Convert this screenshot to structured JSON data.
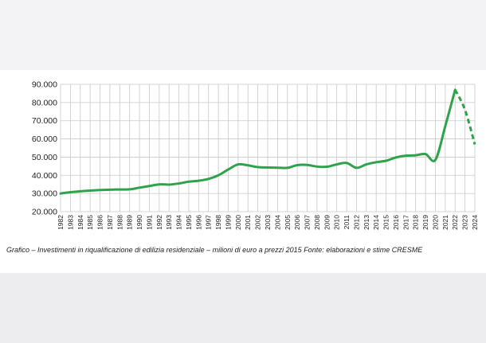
{
  "caption": "Grafico – Investimenti in riqualificazione di edilizia residenziale – milioni di euro a prezzi 2015 Fonte: elaborazioni e stime CRESME",
  "colors": {
    "line": "#2fa34b",
    "grid": "#c9c9c9",
    "background": "#ffffff"
  },
  "chart_data": {
    "type": "line",
    "title": "",
    "xlabel": "",
    "ylabel": "",
    "ylim": [
      20000,
      90000
    ],
    "yticks": [
      "20.000",
      "30.000",
      "40.000",
      "50.000",
      "60.000",
      "70.000",
      "80.000",
      "90.000"
    ],
    "ytick_values": [
      20000,
      30000,
      40000,
      50000,
      60000,
      70000,
      80000,
      90000
    ],
    "grid": true,
    "categories": [
      "1982",
      "1983",
      "1984",
      "1985",
      "1986",
      "1987",
      "1988",
      "1989",
      "1990",
      "1991",
      "1992",
      "1993",
      "1994",
      "1995",
      "1996",
      "1997",
      "1998",
      "1999",
      "2000",
      "2001",
      "2002",
      "2003",
      "2004",
      "2005",
      "2006",
      "2007",
      "2008",
      "2009",
      "2010",
      "2011",
      "2012",
      "2013",
      "2014",
      "2015",
      "2016",
      "2017",
      "2018",
      "2019",
      "2020",
      "2021",
      "2022",
      "2023",
      "2024"
    ],
    "values": [
      30000,
      30700,
      31200,
      31600,
      31900,
      32100,
      32200,
      32300,
      33200,
      34100,
      35000,
      34900,
      35500,
      36500,
      37000,
      38000,
      40000,
      43200,
      46000,
      45500,
      44500,
      44300,
      44200,
      44100,
      45600,
      45700,
      44800,
      44700,
      46000,
      46800,
      44100,
      46000,
      47200,
      48000,
      49800,
      50800,
      51000,
      51700,
      48500,
      67000,
      87000,
      76000,
      57000
    ],
    "projected_from": "2022"
  }
}
